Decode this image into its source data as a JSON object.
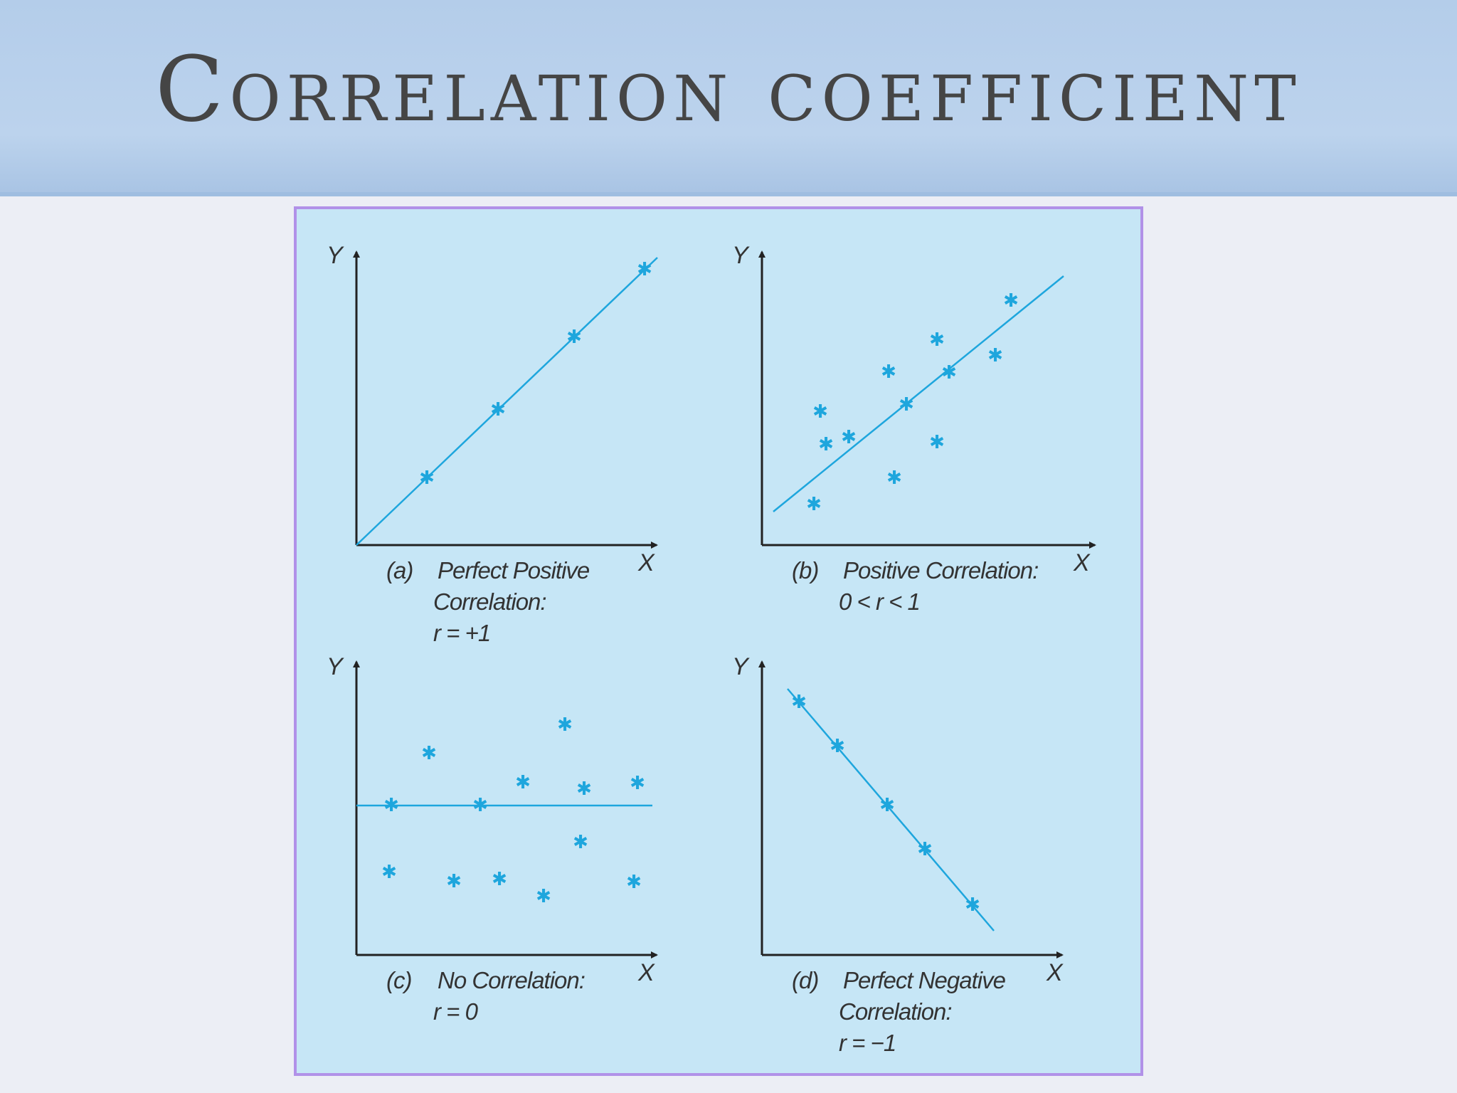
{
  "slide": {
    "title": "Correlation coefficient"
  },
  "panels": [
    {
      "tag": "(a)",
      "caption_lines": [
        "Perfect Positive",
        "Correlation:",
        "r = +1"
      ],
      "x_axis_label": "X",
      "y_axis_label": "Y"
    },
    {
      "tag": "(b)",
      "caption_lines": [
        "Positive Correlation:",
        "0 < r < 1"
      ],
      "x_axis_label": "X",
      "y_axis_label": "Y"
    },
    {
      "tag": "(c)",
      "caption_lines": [
        "No Correlation:",
        "r = 0"
      ],
      "x_axis_label": "X",
      "y_axis_label": "Y"
    },
    {
      "tag": "(d)",
      "caption_lines": [
        "Perfect Negative",
        "Correlation:",
        "r = −1"
      ],
      "x_axis_label": "X",
      "y_axis_label": "Y"
    }
  ],
  "colors": {
    "title_band": "#b4cdea",
    "panel_background": "#c6e6f6",
    "panel_border": "#b191e8",
    "point_and_line": "#1ea6dd",
    "axis": "#222222"
  },
  "marker_glyph": "✱"
}
